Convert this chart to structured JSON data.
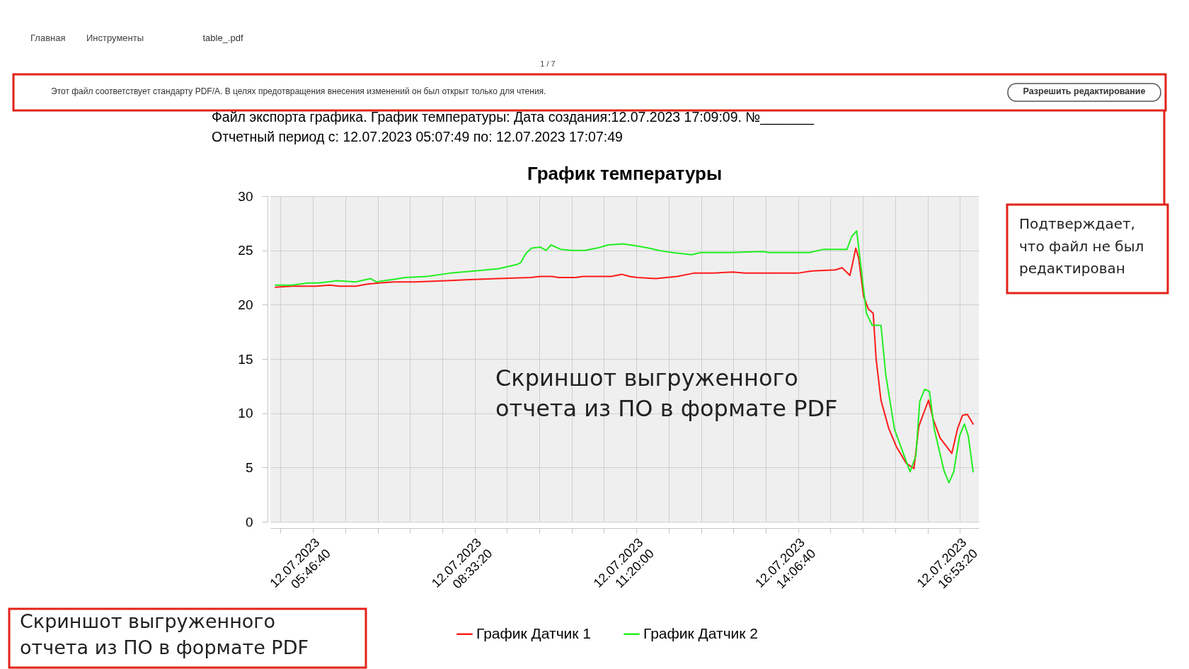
{
  "chart_data": {
    "type": "line",
    "title": "График температуры",
    "annotations": [
      "Файл экспорта графика. График температуры: Дата создания:12.07.2023 17:09:09. №_______",
      "Отчетный период с: 12.07.2023 05:07:49 по: 12.07.2023 17:07:49",
      "Скриншот выгруженного\nотчета из ПО в формате PDF",
      "Скриншот выгруженного\nотчета из ПО в формате PDF",
      "Подтверждает,\nчто файл не был\nредактирован",
      "Этот файл соответствует стандарту PDF/A. В целях предотвращения внесения изменений он был открыт только для чтения.",
      "Разрешить редактирование",
      "Главная",
      "Инструменты",
      "table_.pdf",
      "1 / 7"
    ],
    "xlim": [
      "2023-07-12T05:02:49",
      "2023-07-12T17:12:49"
    ],
    "xticks": [
      {
        "value": "2023-07-12T05:13:20",
        "label": null
      },
      {
        "value": "2023-07-12T05:46:40",
        "label": "12.07.2023\n05:46:40"
      },
      {
        "value": "2023-07-12T06:20:00",
        "label": null
      },
      {
        "value": "2023-07-12T06:53:20",
        "label": null
      },
      {
        "value": "2023-07-12T07:26:40",
        "label": null
      },
      {
        "value": "2023-07-12T08:00:00",
        "label": null
      },
      {
        "value": "2023-07-12T08:33:20",
        "label": "12.07.2023\n08:33:20"
      },
      {
        "value": "2023-07-12T09:06:40",
        "label": null
      },
      {
        "value": "2023-07-12T09:40:00",
        "label": null
      },
      {
        "value": "2023-07-12T10:13:20",
        "label": null
      },
      {
        "value": "2023-07-12T10:46:40",
        "label": null
      },
      {
        "value": "2023-07-12T11:20:00",
        "label": "12.07.2023\n11:20:00"
      },
      {
        "value": "2023-07-12T11:53:20",
        "label": null
      },
      {
        "value": "2023-07-12T12:26:40",
        "label": null
      },
      {
        "value": "2023-07-12T13:00:00",
        "label": null
      },
      {
        "value": "2023-07-12T13:33:20",
        "label": null
      },
      {
        "value": "2023-07-12T14:06:40",
        "label": "12.07.2023\n14:06:40"
      },
      {
        "value": "2023-07-12T14:40:00",
        "label": null
      },
      {
        "value": "2023-07-12T15:13:20",
        "label": null
      },
      {
        "value": "2023-07-12T15:46:40",
        "label": null
      },
      {
        "value": "2023-07-12T16:20:00",
        "label": null
      },
      {
        "value": "2023-07-12T16:53:20",
        "label": "12.07.2023\n16:53:20"
      }
    ],
    "ylim": [
      0,
      30
    ],
    "yticks": [
      0,
      5,
      10,
      15,
      20,
      25,
      30
    ],
    "grid": true,
    "legend": "bottom",
    "series": [
      {
        "name": "График Датчик 1",
        "color": "#ff1a1a",
        "x": [
          "2023-07-12T05:08",
          "2023-07-12T05:25",
          "2023-07-12T05:50",
          "2023-07-12T06:04",
          "2023-07-12T06:14",
          "2023-07-12T06:31",
          "2023-07-12T06:43",
          "2023-07-12T06:55",
          "2023-07-12T07:10",
          "2023-07-12T07:32",
          "2023-07-12T08:04",
          "2023-07-12T08:28",
          "2023-07-12T08:57",
          "2023-07-12T09:31",
          "2023-07-12T09:41",
          "2023-07-12T09:53",
          "2023-07-12T10:00",
          "2023-07-12T10:17",
          "2023-07-12T10:25",
          "2023-07-12T10:54",
          "2023-07-12T11:05",
          "2023-07-12T11:13",
          "2023-07-12T11:21",
          "2023-07-12T11:40",
          "2023-07-12T12:02",
          "2023-07-12T12:19",
          "2023-07-12T12:38",
          "2023-07-12T12:59",
          "2023-07-12T13:12",
          "2023-07-12T13:32",
          "2023-07-12T14:06",
          "2023-07-12T14:21",
          "2023-07-12T14:45",
          "2023-07-12T14:52",
          "2023-07-12T15:00",
          "2023-07-12T15:03",
          "2023-07-12T15:06",
          "2023-07-12T15:09",
          "2023-07-12T15:14",
          "2023-07-12T15:19",
          "2023-07-12T15:24",
          "2023-07-12T15:27",
          "2023-07-12T15:32",
          "2023-07-12T15:40",
          "2023-07-12T15:48",
          "2023-07-12T15:58",
          "2023-07-12T16:06",
          "2023-07-12T16:11",
          "2023-07-12T16:21",
          "2023-07-12T16:26",
          "2023-07-12T16:33",
          "2023-07-12T16:45",
          "2023-07-12T16:51",
          "2023-07-12T16:56",
          "2023-07-12T17:01",
          "2023-07-12T17:07"
        ],
        "values": [
          21.6,
          21.7,
          21.7,
          21.8,
          21.7,
          21.7,
          21.9,
          22.0,
          22.1,
          22.1,
          22.2,
          22.3,
          22.4,
          22.5,
          22.6,
          22.6,
          22.5,
          22.5,
          22.6,
          22.6,
          22.8,
          22.6,
          22.5,
          22.4,
          22.6,
          22.9,
          22.9,
          23.0,
          22.9,
          22.9,
          22.9,
          23.1,
          23.2,
          23.4,
          22.7,
          23.9,
          25.2,
          24.3,
          20.8,
          19.6,
          19.2,
          15.0,
          11.2,
          8.6,
          6.9,
          5.4,
          4.9,
          8.8,
          11.2,
          9.4,
          7.7,
          6.3,
          8.6,
          9.8,
          9.9,
          9.0
        ]
      },
      {
        "name": "График Датчик 2",
        "color": "#22ee22",
        "x": [
          "2023-07-12T05:08",
          "2023-07-12T05:25",
          "2023-07-12T05:42",
          "2023-07-12T05:52",
          "2023-07-12T06:02",
          "2023-07-12T06:12",
          "2023-07-12T06:31",
          "2023-07-12T06:41",
          "2023-07-12T06:46",
          "2023-07-12T06:52",
          "2023-07-12T07:00",
          "2023-07-12T07:08",
          "2023-07-12T07:22",
          "2023-07-12T07:44",
          "2023-07-12T08:08",
          "2023-07-12T08:33",
          "2023-07-12T08:57",
          "2023-07-12T09:07",
          "2023-07-12T09:17",
          "2023-07-12T09:21",
          "2023-07-12T09:26",
          "2023-07-12T09:32",
          "2023-07-12T09:41",
          "2023-07-12T09:47",
          "2023-07-12T09:52",
          "2023-07-12T10:02",
          "2023-07-12T10:14",
          "2023-07-12T10:21",
          "2023-07-12T10:27",
          "2023-07-12T10:39",
          "2023-07-12T10:51",
          "2023-07-12T11:06",
          "2023-07-12T11:21",
          "2023-07-12T11:33",
          "2023-07-12T11:43",
          "2023-07-12T11:57",
          "2023-07-12T12:17",
          "2023-07-12T12:26",
          "2023-07-12T12:56",
          "2023-07-12T13:30",
          "2023-07-12T13:37",
          "2023-07-12T14:18",
          "2023-07-12T14:33",
          "2023-07-12T14:57",
          "2023-07-12T15:02",
          "2023-07-12T15:07",
          "2023-07-12T15:17",
          "2023-07-12T15:23",
          "2023-07-12T15:32",
          "2023-07-12T15:37",
          "2023-07-12T15:46",
          "2023-07-12T16:02",
          "2023-07-12T16:08",
          "2023-07-12T16:12",
          "2023-07-12T16:17",
          "2023-07-12T16:22",
          "2023-07-12T16:27",
          "2023-07-12T16:37",
          "2023-07-12T16:42",
          "2023-07-12T16:47",
          "2023-07-12T16:53",
          "2023-07-12T16:58",
          "2023-07-12T17:02",
          "2023-07-12T17:07"
        ],
        "values": [
          21.8,
          21.8,
          22.0,
          22.0,
          22.1,
          22.2,
          22.1,
          22.3,
          22.4,
          22.1,
          22.2,
          22.3,
          22.5,
          22.6,
          22.9,
          23.1,
          23.3,
          23.5,
          23.7,
          23.9,
          24.7,
          25.2,
          25.3,
          25.0,
          25.5,
          25.1,
          25.0,
          25.0,
          25.0,
          25.2,
          25.5,
          25.6,
          25.4,
          25.2,
          25.0,
          24.8,
          24.6,
          24.8,
          24.8,
          24.9,
          24.8,
          24.8,
          25.1,
          25.1,
          26.3,
          26.8,
          19.2,
          18.1,
          18.1,
          13.5,
          8.5,
          4.6,
          6.1,
          11.1,
          12.2,
          12.0,
          8.5,
          4.7,
          3.6,
          4.6,
          7.9,
          9.0,
          7.9,
          4.6
        ]
      }
    ]
  }
}
